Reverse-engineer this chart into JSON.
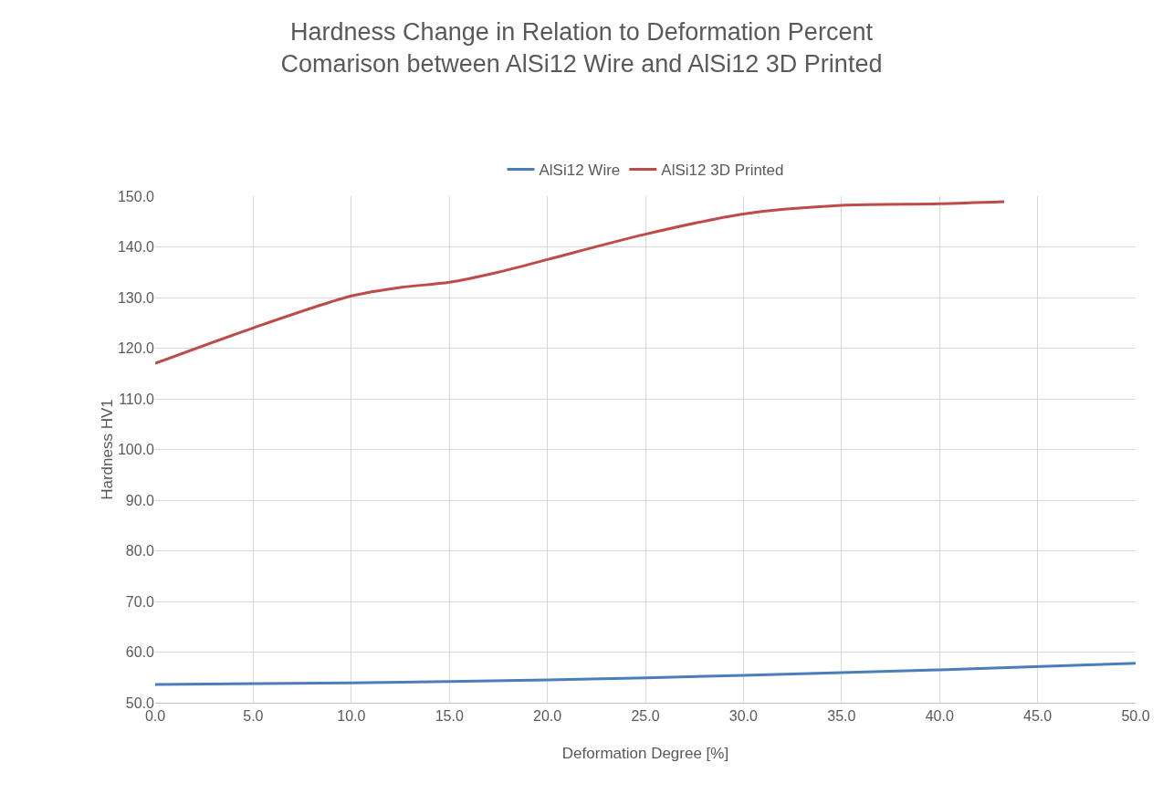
{
  "chart_data": {
    "type": "line",
    "title": "Hardness Change in Relation to Deformation Percent\nComarison between AlSi12 Wire and AlSi12 3D Printed",
    "xlabel": "Deformation Degree [%]",
    "ylabel": "Hardness HV1",
    "series": [
      {
        "name": "AlSi12 Wire",
        "color": "#4a7ebb",
        "x": [
          0,
          10,
          20,
          30,
          40,
          50
        ],
        "values": [
          53.6,
          53.9,
          54.5,
          55.4,
          56.5,
          57.8
        ]
      },
      {
        "name": "AlSi12 3D Printed",
        "color": "#be4b48",
        "x": [
          0,
          5,
          10,
          12.5,
          15,
          17.5,
          20,
          25,
          30,
          35,
          40,
          43.3
        ],
        "values": [
          117,
          124,
          130.3,
          132,
          133,
          135,
          137.5,
          142.5,
          146.5,
          148.2,
          148.5,
          148.9
        ]
      }
    ],
    "xlim": [
      0,
      50
    ],
    "xticks": [
      {
        "value": 0,
        "label": "0.0"
      },
      {
        "value": 5,
        "label": "5.0"
      },
      {
        "value": 10,
        "label": "10.0"
      },
      {
        "value": 15,
        "label": "15.0"
      },
      {
        "value": 20,
        "label": "20.0"
      },
      {
        "value": 25,
        "label": "25.0"
      },
      {
        "value": 30,
        "label": "30.0"
      },
      {
        "value": 35,
        "label": "35.0"
      },
      {
        "value": 40,
        "label": "40.0"
      },
      {
        "value": 45,
        "label": "45.0"
      },
      {
        "value": 50,
        "label": "50.0"
      }
    ],
    "ylim": [
      50,
      150
    ],
    "yticks": [
      {
        "value": 50,
        "label": "50.0"
      },
      {
        "value": 60,
        "label": "60.0"
      },
      {
        "value": 70,
        "label": "70.0"
      },
      {
        "value": 80,
        "label": "80.0"
      },
      {
        "value": 90,
        "label": "90.0"
      },
      {
        "value": 100,
        "label": "100.0"
      },
      {
        "value": 110,
        "label": "110.0"
      },
      {
        "value": 120,
        "label": "120.0"
      },
      {
        "value": 130,
        "label": "130.0"
      },
      {
        "value": 140,
        "label": "140.0"
      },
      {
        "value": 150,
        "label": "150.0"
      }
    ],
    "grid": true,
    "legend": "top",
    "marker": "none",
    "line_style": "solid"
  }
}
